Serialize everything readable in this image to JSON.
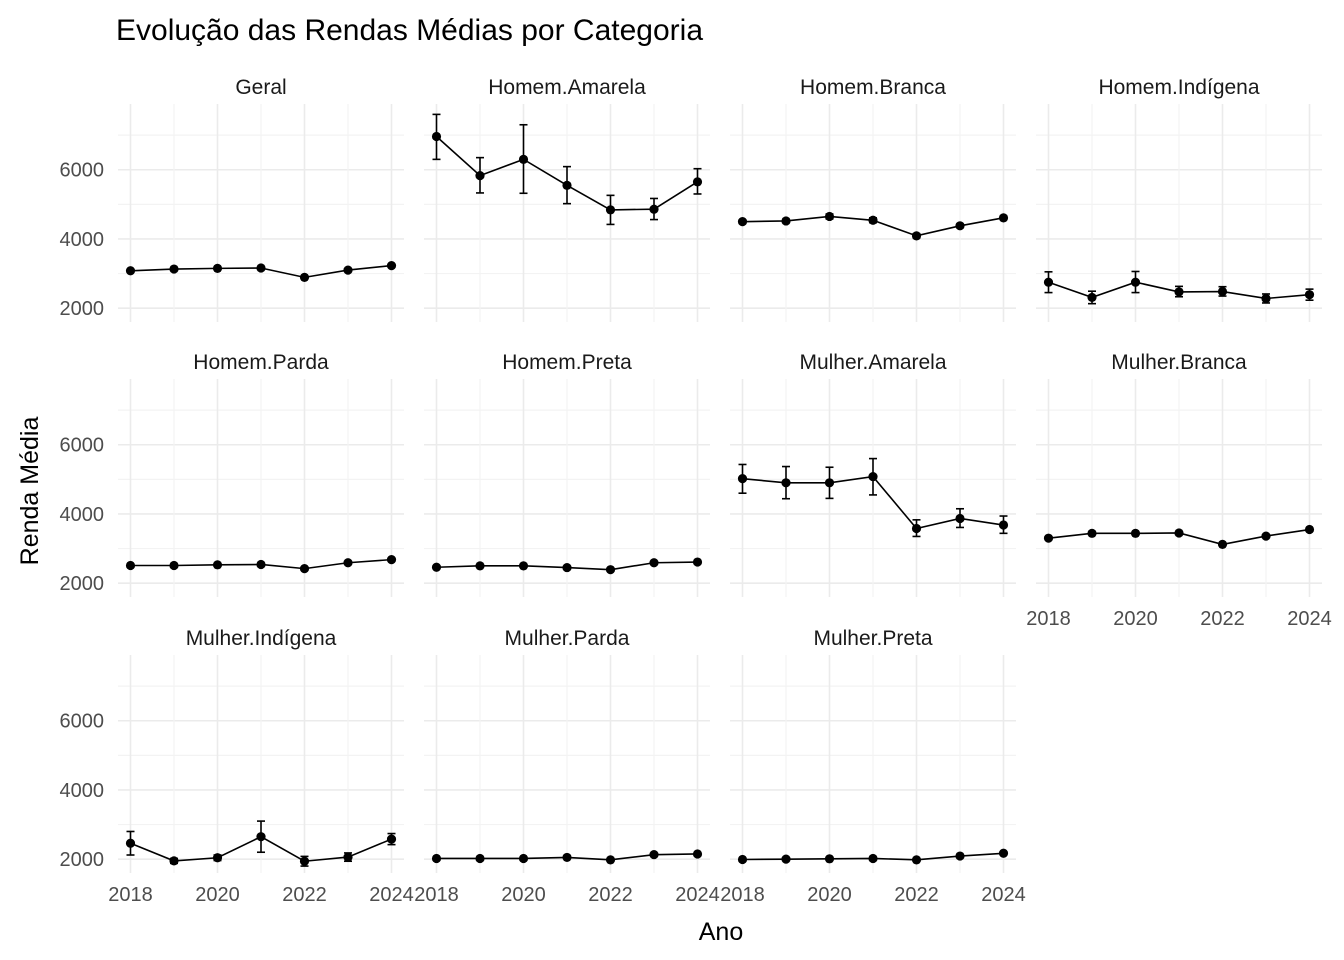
{
  "chart_data": {
    "type": "line",
    "title": "Evolução das Rendas Médias por Categoria",
    "xlabel": "Ano",
    "ylabel": "Renda Média",
    "x_ticks": [
      2018,
      2020,
      2022,
      2024
    ],
    "y_ticks": [
      2000,
      4000,
      6000
    ],
    "xlim": [
      2018,
      2024
    ],
    "ylim": [
      1600,
      7900
    ],
    "grid": true,
    "facet_columns": 4,
    "x": [
      2018,
      2019,
      2020,
      2021,
      2022,
      2023,
      2024
    ],
    "panels": [
      {
        "name": "Geral",
        "values": [
          3080,
          3130,
          3150,
          3160,
          2890,
          3100,
          3230
        ],
        "lower": [
          3060,
          3110,
          3130,
          3140,
          2870,
          3080,
          3210
        ],
        "upper": [
          3100,
          3150,
          3170,
          3180,
          2910,
          3120,
          3250
        ]
      },
      {
        "name": "Homem.Amarela",
        "values": [
          6960,
          5830,
          6300,
          5550,
          4840,
          4860,
          5650
        ],
        "lower": [
          6300,
          5330,
          5320,
          5020,
          4420,
          4560,
          5300
        ],
        "upper": [
          7600,
          6350,
          7300,
          6090,
          5260,
          5170,
          6030
        ]
      },
      {
        "name": "Homem.Branca",
        "values": [
          4500,
          4520,
          4650,
          4540,
          4090,
          4380,
          4610
        ],
        "lower": [
          4450,
          4470,
          4580,
          4470,
          4030,
          4330,
          4560
        ],
        "upper": [
          4550,
          4570,
          4720,
          4610,
          4150,
          4430,
          4660
        ]
      },
      {
        "name": "Homem.Indígena",
        "values": [
          2750,
          2310,
          2750,
          2470,
          2480,
          2280,
          2390
        ],
        "lower": [
          2450,
          2130,
          2450,
          2330,
          2350,
          2150,
          2230
        ],
        "upper": [
          3050,
          2490,
          3060,
          2630,
          2620,
          2410,
          2550
        ]
      },
      {
        "name": "Homem.Parda",
        "values": [
          2510,
          2510,
          2530,
          2540,
          2420,
          2590,
          2680
        ],
        "lower": [
          2490,
          2490,
          2510,
          2520,
          2400,
          2570,
          2660
        ],
        "upper": [
          2530,
          2530,
          2550,
          2560,
          2440,
          2610,
          2700
        ]
      },
      {
        "name": "Homem.Preta",
        "values": [
          2460,
          2500,
          2500,
          2450,
          2390,
          2590,
          2610
        ],
        "lower": [
          2440,
          2480,
          2480,
          2430,
          2370,
          2570,
          2590
        ],
        "upper": [
          2480,
          2520,
          2520,
          2470,
          2410,
          2610,
          2630
        ]
      },
      {
        "name": "Mulher.Amarela",
        "values": [
          5020,
          4900,
          4900,
          5080,
          3580,
          3870,
          3680
        ],
        "lower": [
          4600,
          4440,
          4450,
          4550,
          3350,
          3610,
          3440
        ],
        "upper": [
          5430,
          5370,
          5350,
          5600,
          3830,
          4150,
          3940
        ]
      },
      {
        "name": "Mulher.Branca",
        "values": [
          3300,
          3440,
          3440,
          3450,
          3120,
          3360,
          3550
        ],
        "lower": [
          3270,
          3410,
          3410,
          3420,
          3090,
          3330,
          3520
        ],
        "upper": [
          3330,
          3470,
          3470,
          3480,
          3150,
          3390,
          3580
        ]
      },
      {
        "name": "Mulher.Indígena",
        "values": [
          2460,
          1950,
          2040,
          2650,
          1940,
          2060,
          2580
        ],
        "lower": [
          2120,
          1880,
          1960,
          2200,
          1800,
          1940,
          2420
        ],
        "upper": [
          2800,
          2020,
          2120,
          3100,
          2080,
          2180,
          2740
        ]
      },
      {
        "name": "Mulher.Parda",
        "values": [
          2020,
          2020,
          2020,
          2050,
          1980,
          2130,
          2150
        ],
        "lower": [
          2000,
          2000,
          2000,
          2030,
          1960,
          2110,
          2130
        ],
        "upper": [
          2040,
          2040,
          2040,
          2070,
          2000,
          2150,
          2170
        ]
      },
      {
        "name": "Mulher.Preta",
        "values": [
          1990,
          2000,
          2010,
          2020,
          1980,
          2090,
          2170
        ],
        "lower": [
          1970,
          1980,
          1990,
          2000,
          1960,
          2070,
          2150
        ],
        "upper": [
          2010,
          2020,
          2030,
          2040,
          2000,
          2110,
          2190
        ]
      }
    ]
  }
}
